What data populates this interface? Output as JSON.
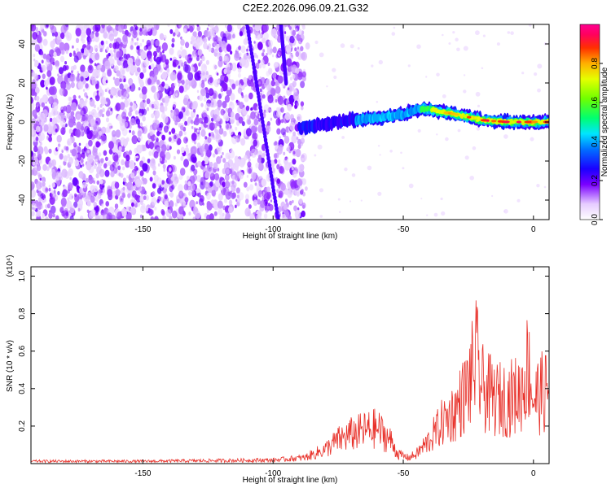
{
  "title": "C2E2.2026.096.09.21.G32",
  "chart_data": [
    {
      "type": "heatmap",
      "xlabel": "Height of straight line (km)",
      "ylabel": "Frequency (Hz)",
      "xlim": [
        -193,
        6
      ],
      "ylim": [
        -50,
        50
      ],
      "xticks": [
        -150,
        -100,
        -50,
        0
      ],
      "yticks": [
        -40,
        -20,
        0,
        20,
        40
      ],
      "colorbar": {
        "label": "Normalized spectral amplitude",
        "range": [
          0,
          1
        ],
        "ticks": [
          0.0,
          0.2,
          0.4,
          0.6,
          0.8
        ]
      },
      "ridge": {
        "description_start_km": -90,
        "x_km": [
          -90,
          -80,
          -70,
          -60,
          -50,
          -43,
          -38,
          -30,
          -20,
          -10,
          0,
          5
        ],
        "freq_hz": [
          -3,
          -1,
          1,
          2,
          4,
          7,
          6,
          4,
          1,
          0,
          0,
          0
        ],
        "peak_amplitude": [
          0.3,
          0.35,
          0.4,
          0.45,
          0.5,
          0.55,
          0.8,
          0.85,
          0.95,
          0.95,
          0.95,
          0.9
        ]
      },
      "diagonal_streaks": [
        {
          "x_start_km": -110,
          "x_end_km": -98,
          "y_start_hz": 50,
          "y_end_hz": -50
        },
        {
          "x_start_km": -97,
          "x_end_km": -95,
          "y_start_hz": 50,
          "y_end_hz": 20
        }
      ]
    },
    {
      "type": "line",
      "xlabel": "Height of straight line (km)",
      "ylabel": "SNR (10 * v/v)",
      "y_multiplier": "(x10⁴)",
      "xlim": [
        -193,
        6
      ],
      "ylim": [
        0,
        1.05
      ],
      "xticks": [
        -150,
        -100,
        -50,
        0
      ],
      "yticks": [
        0.2,
        0.4,
        0.6,
        0.8,
        1.0
      ],
      "series": [
        {
          "name": "SNR",
          "color": "#e8312a",
          "envelope_x": [
            -193,
            -150,
            -100,
            -88,
            -80,
            -75,
            -70,
            -65,
            -60,
            -55,
            -52,
            -48,
            -45,
            -40,
            -35,
            -30,
            -25,
            -22,
            -20,
            -15,
            -10,
            -5,
            -2,
            0,
            3,
            6
          ],
          "envelope_y": [
            0.02,
            0.02,
            0.03,
            0.05,
            0.12,
            0.2,
            0.25,
            0.28,
            0.3,
            0.2,
            0.08,
            0.05,
            0.08,
            0.2,
            0.35,
            0.45,
            0.65,
            0.9,
            0.65,
            0.55,
            0.55,
            0.6,
            0.85,
            0.55,
            0.6,
            0.62
          ]
        }
      ]
    }
  ]
}
